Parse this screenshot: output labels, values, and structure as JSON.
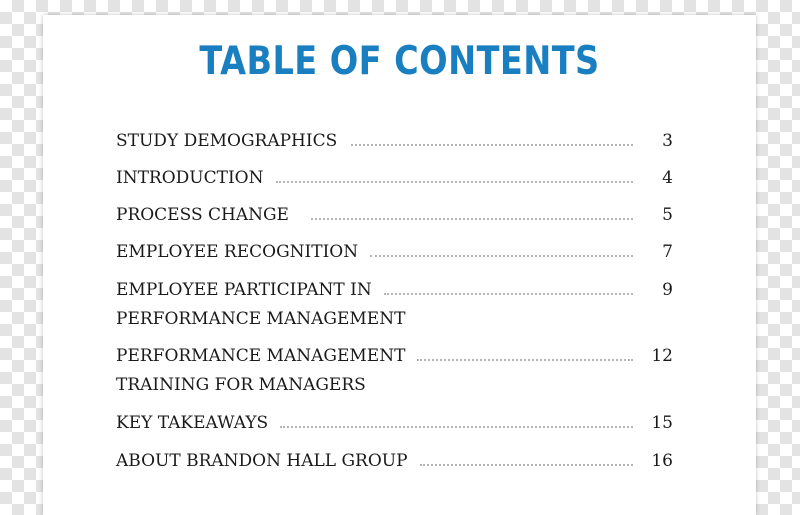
{
  "document": {
    "title": "TABLE OF CONTENTS",
    "entries": [
      {
        "label": "STUDY DEMOGRAPHICS",
        "page": "3"
      },
      {
        "label": "INTRODUCTION",
        "page": "4"
      },
      {
        "label": "PROCESS CHANGE",
        "page": "5"
      },
      {
        "label": "EMPLOYEE RECOGNITION",
        "page": "7"
      },
      {
        "label": "EMPLOYEE PARTICIPANT IN",
        "continuation": "PERFORMANCE MANAGEMENT",
        "page": "9"
      },
      {
        "label": "PERFORMANCE MANAGEMENT",
        "continuation": "TRAINING FOR MANAGERS",
        "page": "12"
      },
      {
        "label": "KEY TAKEAWAYS",
        "page": "15"
      },
      {
        "label": "ABOUT BRANDON HALL GROUP",
        "page": "16"
      }
    ],
    "colors": {
      "title": "#1a7fc1",
      "text": "#1a1a1a",
      "leader": "#b5b5b5"
    }
  }
}
